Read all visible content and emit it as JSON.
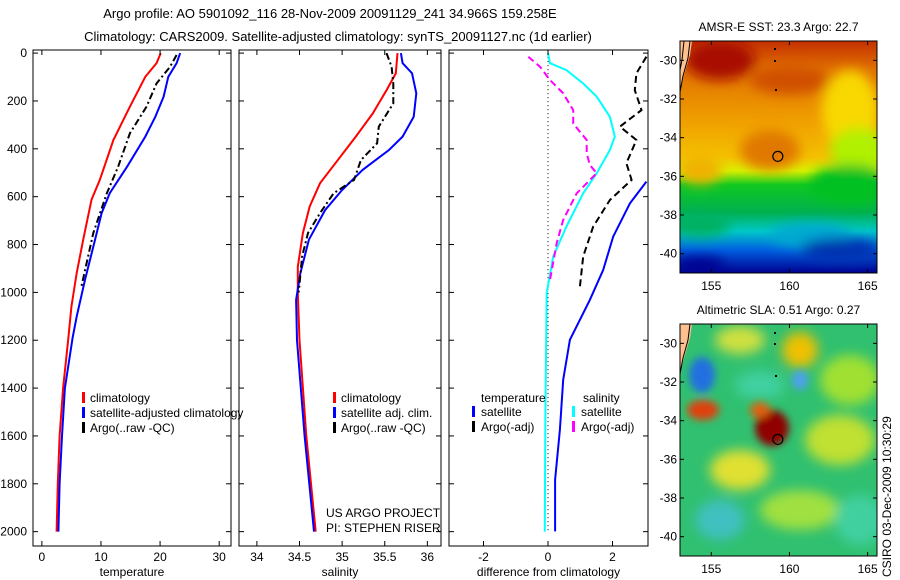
{
  "title_line1": "Argo profile: AO 5901092_116 28-Nov-2009 20091129_241 34.966S 159.258E",
  "title_line2": "Climatology: CARS2009. Satellite-adjusted climatology: synTS_20091127.nc (1d earlier)",
  "side_label": "CSIRO 03-Dec-2009 10:30:29",
  "project_line1": "US ARGO PROJECT",
  "project_line2": "PI: STEPHEN RISER",
  "colors": {
    "climatology": "#ff0000",
    "satellite": "#0000ff",
    "argo": "#000000",
    "sal_satellite": "#00ffff",
    "sal_argo": "#ff00ff"
  },
  "chart_data": [
    {
      "type": "line",
      "id": "temperature",
      "xlabel": "temperature",
      "ylabel": "",
      "xlim": [
        -1.5,
        32
      ],
      "ylim": [
        2060,
        -13
      ],
      "xticks": [
        0,
        10,
        20,
        30
      ],
      "yticks": [
        0,
        200,
        400,
        600,
        800,
        1000,
        1200,
        1400,
        1600,
        1800,
        2000
      ],
      "legend": [
        "climatology",
        "satellite-adjusted climatology",
        "Argo(..raw -QC)"
      ],
      "legend_placement": "lower-right",
      "series": [
        {
          "name": "climatology",
          "color": "#ff0000",
          "dash": "",
          "width": 2,
          "depth": [
            0,
            42,
            99,
            224,
            363,
            530,
            613,
            780,
            919,
            1060,
            1185,
            1400,
            1600,
            1800,
            2000
          ],
          "values": [
            20.1,
            19.4,
            17.5,
            14.9,
            12.1,
            9.8,
            8.4,
            7.0,
            5.9,
            5.0,
            4.5,
            3.6,
            3.0,
            2.7,
            2.5
          ]
        },
        {
          "name": "satellite-adjusted climatology",
          "color": "#0000ff",
          "dash": "",
          "width": 2,
          "depth": [
            0,
            42,
            99,
            182,
            266,
            349,
            475,
            585,
            669,
            809,
            948,
            1101,
            1190,
            1400,
            1600,
            1800,
            2000
          ],
          "values": [
            23.4,
            22.8,
            21.4,
            20.6,
            19.2,
            17.5,
            14.4,
            11.5,
            10.1,
            8.7,
            7.3,
            5.9,
            5.2,
            3.9,
            3.4,
            3.0,
            2.8
          ]
        },
        {
          "name": "Argo(..raw -QC)",
          "color": "#000000",
          "dash": "7,3,2,3",
          "width": 2,
          "depth": [
            8,
            57,
            127,
            224,
            335,
            475,
            585,
            752,
            974
          ],
          "values": [
            22.8,
            21.7,
            19.4,
            17.7,
            14.9,
            12.9,
            11.0,
            8.7,
            6.7
          ]
        }
      ]
    },
    {
      "type": "line",
      "id": "salinity",
      "xlabel": "salinity",
      "xlim": [
        33.79,
        36.16
      ],
      "ylim": [
        2060,
        -13
      ],
      "xticks": [
        34,
        34.5,
        35,
        35.5,
        36
      ],
      "legend": [
        "climatology",
        "satellite adj. clim.",
        "Argo(..raw -QC)"
      ],
      "legend_placement": "lower-right",
      "series": [
        {
          "name": "climatology",
          "color": "#ff0000",
          "dash": "",
          "width": 2,
          "depth": [
            0,
            85,
            155,
            252,
            349,
            433,
            544,
            641,
            752,
            893,
            1003,
            1200,
            1600,
            2000
          ],
          "values": [
            35.65,
            35.63,
            35.52,
            35.36,
            35.16,
            34.98,
            34.74,
            34.62,
            34.54,
            34.48,
            34.48,
            34.5,
            34.58,
            34.69
          ]
        },
        {
          "name": "satellite adj. clim.",
          "color": "#0000ff",
          "dash": "",
          "width": 2,
          "depth": [
            0,
            42,
            84,
            168,
            266,
            349,
            405,
            488,
            572,
            656,
            780,
            919,
            1031,
            1200,
            1600,
            2000
          ],
          "values": [
            35.69,
            35.71,
            35.82,
            35.87,
            35.84,
            35.71,
            35.55,
            35.24,
            35.0,
            34.8,
            34.61,
            34.51,
            34.46,
            34.47,
            34.56,
            34.67
          ]
        },
        {
          "name": "Argo(..raw -QC)",
          "color": "#000000",
          "dash": "7,3,2,3",
          "width": 2,
          "depth": [
            0,
            57,
            127,
            210,
            307,
            377,
            447,
            530,
            586,
            669,
            752,
            850,
            1000
          ],
          "values": [
            35.52,
            35.58,
            35.6,
            35.6,
            35.43,
            35.41,
            35.22,
            35.14,
            34.9,
            34.74,
            34.6,
            34.53,
            34.49
          ]
        }
      ]
    },
    {
      "type": "line",
      "id": "difference",
      "xlabel": "difference from climatology",
      "xlim": [
        -3.07,
        3.1
      ],
      "ylim": [
        2060,
        -13
      ],
      "xticks": [
        -2,
        0,
        2
      ],
      "legend_groups": [
        {
          "heading": "temperature",
          "items": [
            "satellite",
            "Argo(-adj)"
          ]
        },
        {
          "heading": "salinity",
          "items": [
            "satellite",
            "Argo(-adj)"
          ]
        }
      ],
      "legend_placement": "lower-center",
      "series": [
        {
          "name": "temperature satellite",
          "color": "#0000ff",
          "dash": "",
          "width": 2,
          "depth": [
            537,
            628,
            767,
            906,
            1031,
            1198,
            1365,
            1574,
            1783,
            1999
          ],
          "values": [
            3.05,
            2.54,
            2.02,
            1.71,
            1.3,
            0.68,
            0.47,
            0.37,
            0.22,
            0.22
          ]
        },
        {
          "name": "temperature Argo(-adj)",
          "color": "#000000",
          "dash": "7,4",
          "width": 2,
          "depth": [
            15,
            85,
            155,
            238,
            307,
            363,
            460,
            530,
            614,
            725,
            850,
            976
          ],
          "values": [
            3.05,
            2.74,
            2.69,
            2.9,
            2.23,
            2.74,
            2.43,
            2.59,
            1.92,
            1.4,
            1.09,
            0.99
          ]
        },
        {
          "name": "salinity satellite",
          "color": "#00ffff",
          "dash": "",
          "width": 2,
          "depth": [
            0,
            42,
            71,
            127,
            182,
            266,
            349,
            405,
            502,
            586,
            725,
            850,
            1003,
            1500,
            2000
          ],
          "values": [
            0,
            0.06,
            0.57,
            1.09,
            1.51,
            1.92,
            2.07,
            1.92,
            1.51,
            1.09,
            0.57,
            0.16,
            -0.04,
            -0.08,
            -0.1
          ]
        },
        {
          "name": "salinity Argo(-adj)",
          "color": "#ff00ff",
          "dash": "7,4",
          "width": 2,
          "depth": [
            15,
            57,
            113,
            168,
            238,
            294,
            363,
            419,
            468,
            502,
            586,
            697,
            794,
            948
          ],
          "values": [
            -0.61,
            -0.25,
            0.06,
            0.47,
            0.78,
            0.78,
            1.2,
            1.2,
            1.3,
            1.51,
            0.89,
            0.47,
            0.27,
            0.06
          ]
        }
      ]
    },
    {
      "type": "heatmap",
      "id": "sst-map",
      "title": "AMSR-E SST: 23.3 Argo: 22.7",
      "xlim": [
        153.0,
        165.6
      ],
      "ylim": [
        -41.0,
        -29.0
      ],
      "xticks": [
        155,
        160,
        165
      ],
      "yticks": [
        -30,
        -32,
        -34,
        -36,
        -38,
        -40
      ],
      "marker": {
        "lon": 159.258,
        "lat": -34.966
      }
    },
    {
      "type": "heatmap",
      "id": "sla-map",
      "title": "Altimetric SLA: 0.51 Argo: 0.27",
      "xlim": [
        153.0,
        165.6
      ],
      "ylim": [
        -41.0,
        -29.0
      ],
      "xticks": [
        155,
        160,
        165
      ],
      "yticks": [
        -30,
        -32,
        -34,
        -36,
        -38,
        -40
      ],
      "marker": {
        "lon": 159.258,
        "lat": -34.966
      }
    }
  ]
}
